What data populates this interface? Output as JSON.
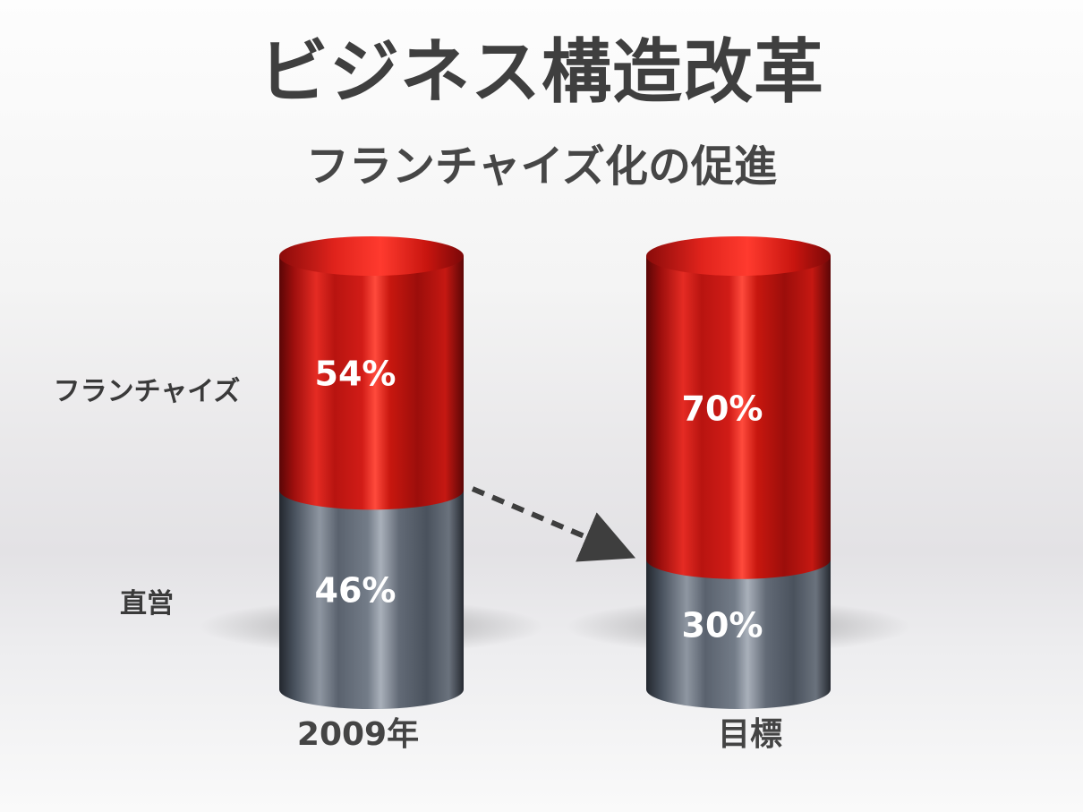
{
  "title": "ビジネス構造改革",
  "subtitle": "フランチャイズ化の促進",
  "chart_data": {
    "type": "bar",
    "stacked": true,
    "categories": [
      "2009年",
      "目標"
    ],
    "series": [
      {
        "name": "直営",
        "values": [
          46,
          30
        ],
        "labels": [
          "46%",
          "30%"
        ],
        "color": "#66707c"
      },
      {
        "name": "フランチャイズ",
        "values": [
          54,
          70
        ],
        "labels": [
          "54%",
          "70%"
        ],
        "color": "#d01a17"
      }
    ],
    "ylim": [
      0,
      100
    ],
    "legend": "left",
    "annotations": [
      "dashed arrow from 2009年 to 目標"
    ]
  }
}
